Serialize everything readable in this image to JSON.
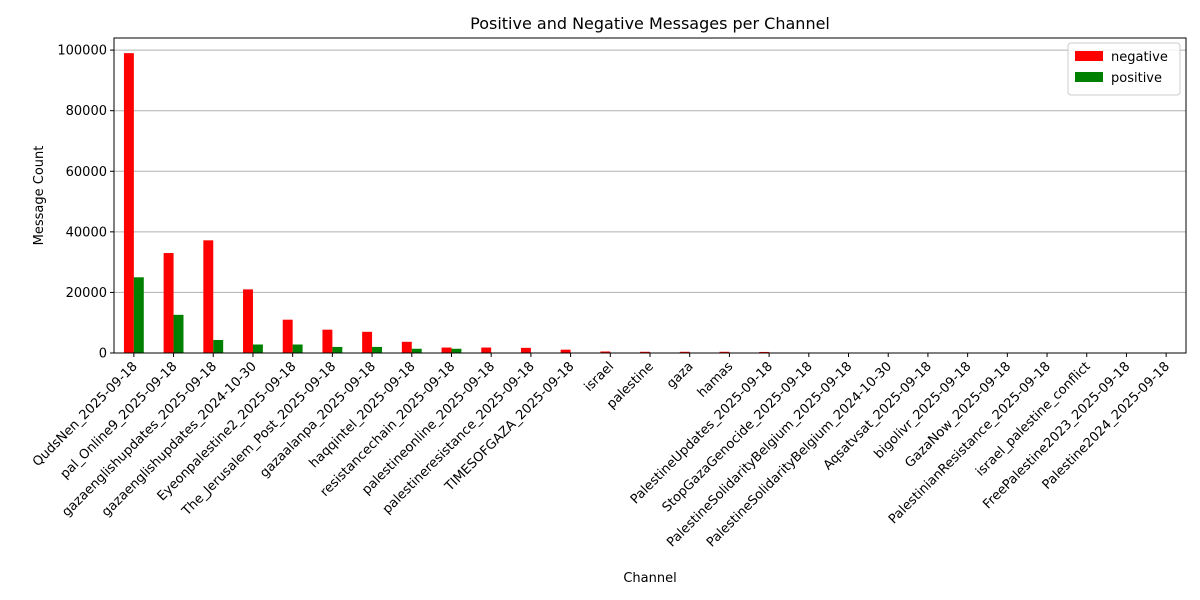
{
  "chart_data": {
    "type": "bar",
    "title": "Positive and Negative Messages per Channel",
    "xlabel": "Channel",
    "ylabel": "Message Count",
    "ylim": [
      0,
      104000
    ],
    "yticks": [
      0,
      20000,
      40000,
      60000,
      80000,
      100000
    ],
    "grid": "y",
    "legend_position": "top-right",
    "categories": [
      "QudsNen_2025-09-18",
      "pal_Online9_2025-09-18",
      "gazaenglishupdates_2025-09-18",
      "gazaenglishupdates_2024-10-30",
      "Eyeonpalestine2_2025-09-18",
      "The_Jerusalem_Post_2025-09-18",
      "gazaalanpa_2025-09-18",
      "haqqintel_2025-09-18",
      "resistancechain_2025-09-18",
      "palestineonline_2025-09-18",
      "palestineresistance_2025-09-18",
      "TIMESOFGAZA_2025-09-18",
      "israel",
      "palestine",
      "gaza",
      "hamas",
      "PalestineUpdates_2025-09-18",
      "StopGazaGenocide_2025-09-18",
      "PalestineSolidarityBelgium_2025-09-18",
      "PalestineSolidarityBelgium_2024-10-30",
      "Aqsatvsat_2025-09-18",
      "bigolivr_2025-09-18",
      "GazaNow_2025-09-18",
      "PalestinianResistance_2025-09-18",
      "israel_palestine_conflict",
      "FreePalestine2023_2025-09-18",
      "Palestine2024_2025-09-18"
    ],
    "series": [
      {
        "name": "negative",
        "color": "#ff0000",
        "values": [
          99000,
          33000,
          37200,
          21000,
          11000,
          7700,
          7000,
          3700,
          1800,
          1800,
          1700,
          1100,
          500,
          400,
          400,
          400,
          350,
          0,
          0,
          0,
          0,
          0,
          0,
          0,
          0,
          0,
          0
        ]
      },
      {
        "name": "positive",
        "color": "#008000",
        "values": [
          25000,
          12600,
          4300,
          2800,
          2800,
          2000,
          2000,
          1400,
          1400,
          100,
          100,
          0,
          0,
          0,
          0,
          0,
          0,
          0,
          0,
          0,
          0,
          0,
          0,
          0,
          0,
          0,
          0
        ]
      }
    ]
  }
}
